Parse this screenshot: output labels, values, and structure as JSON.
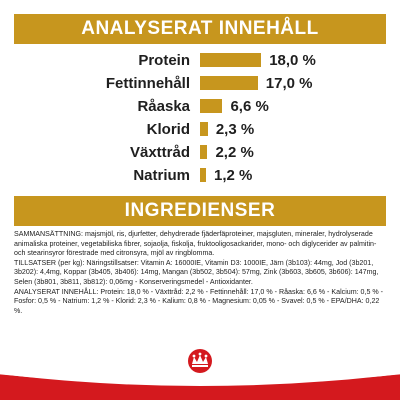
{
  "analysis": {
    "title": "ANALYSERAT INNEHÅLL",
    "bar_color": "#c7961e",
    "rows": [
      {
        "label": "Protein",
        "value_text": "18,0 %",
        "value": 18.0
      },
      {
        "label": "Fettinnehåll",
        "value_text": "17,0 %",
        "value": 17.0
      },
      {
        "label": "Råaska",
        "value_text": "6,6 %",
        "value": 6.6
      },
      {
        "label": "Klorid",
        "value_text": "2,3 %",
        "value": 2.3
      },
      {
        "label": "Växttråd",
        "value_text": "2,2 %",
        "value": 2.2
      },
      {
        "label": "Natrium",
        "value_text": "1,2 %",
        "value": 1.2
      }
    ]
  },
  "ingredients": {
    "title": "INGREDIENSER",
    "composition": "SAMMANSÄTTNING: majsmjöl, ris, djurfetter, dehydrerade fjäderfäproteiner, majsgluten, mineraler, hydrolyserade animaliska proteiner, vegetabiliska fibrer, sojaolja, fiskolja, fruktooligosackarider, mono- och diglycerider av palmitin- och stearinsyror förestrade med citronsyra, mjöl av ringblomma.",
    "additives": "TILLSATSER (per kg): Näringstillsatser: Vitamin A: 16000IE, Vitamin D3: 1000IE, Järn (3b103): 44mg, Jod (3b201, 3b202): 4,4mg, Koppar (3b405, 3b406): 14mg, Mangan (3b502, 3b504): 57mg, Zink (3b603, 3b605, 3b606): 147mg, Selen (3b801, 3b811, 3b812): 0,06mg - Konserveringsmedel - Antioxidanter.",
    "analysis_text": "ANALYSERAT INNEHÅLL: Protein: 18,0 % - Växttråd: 2,2 % - Fettinnehåll: 17,0 % - Råaska: 6,6 % - Kalcium: 0,5 % - Fosfor: 0,5 % - Natrium: 1,2 % - Klorid: 2,3 % - Kalium: 0,8 % - Magnesium: 0,05 % - Svavel: 0,5 % - EPA/DHA: 0,22 %."
  },
  "brand": {
    "logo_icon": "royal-canin-crown-logo-icon",
    "ribbon_color": "#d4191e"
  }
}
